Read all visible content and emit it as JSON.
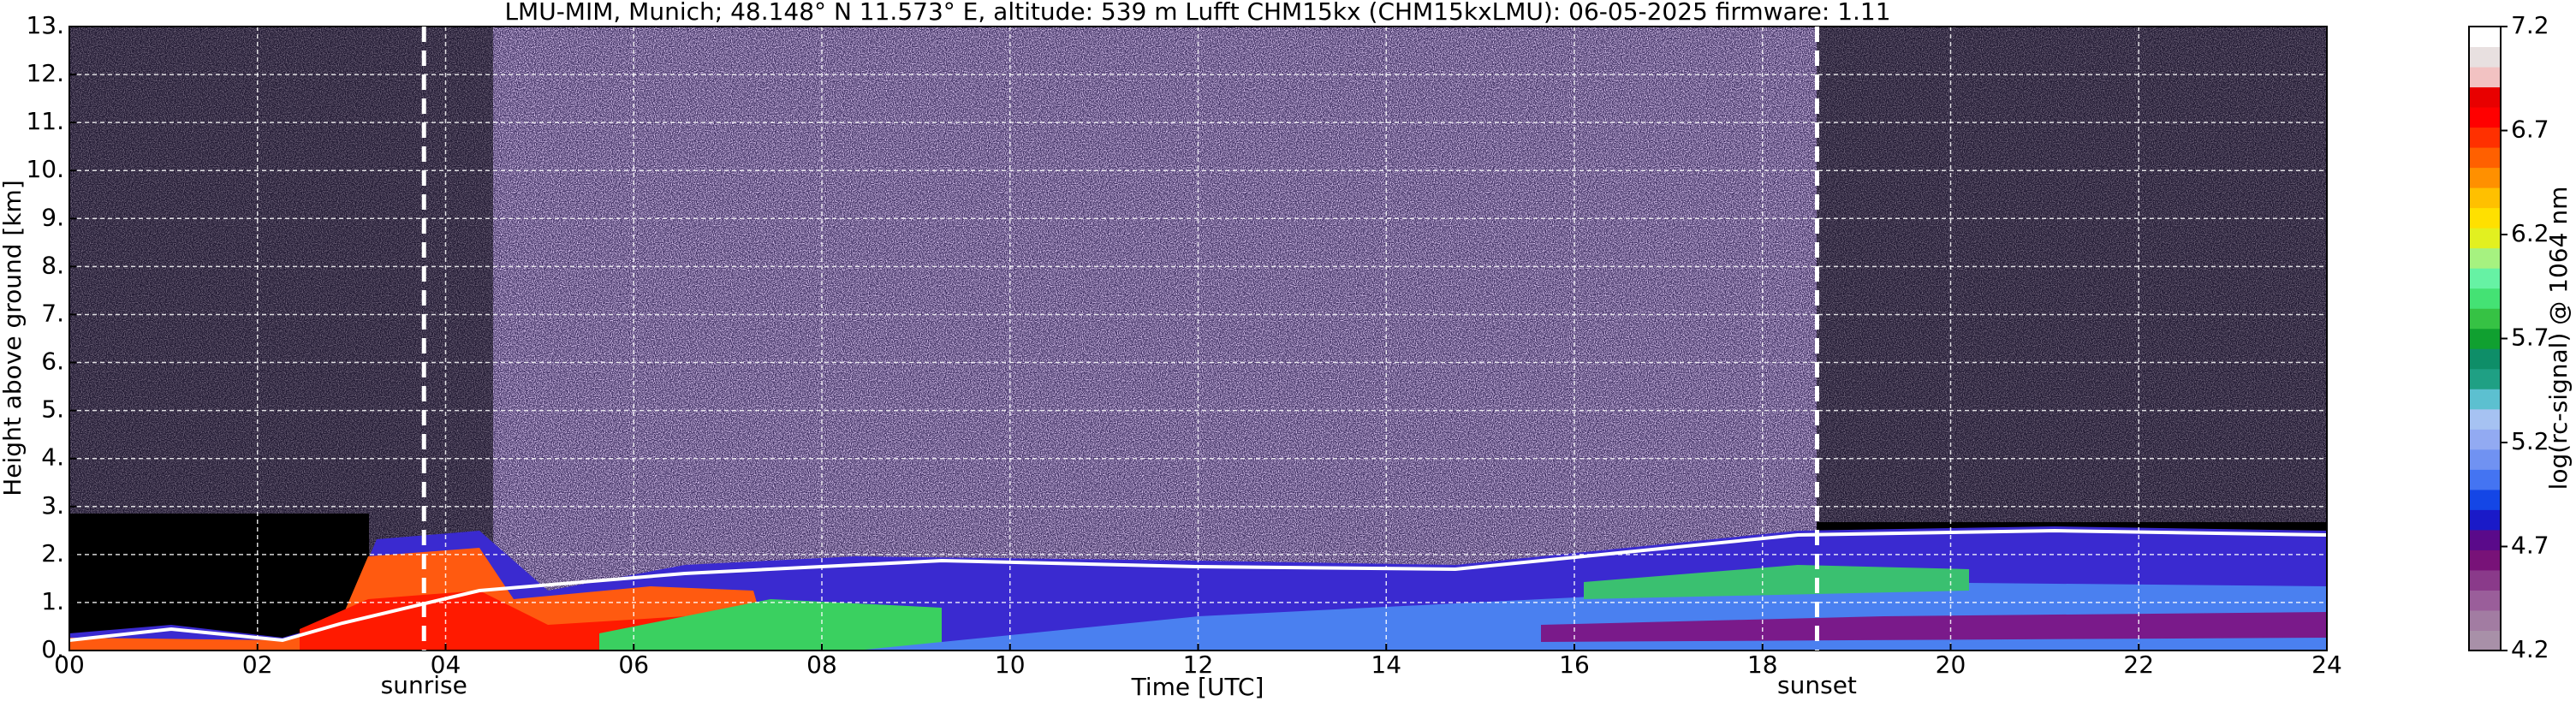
{
  "chart_data": {
    "type": "heatmap",
    "title": "LMU-MIM, Munich; 48.148° N 11.573° E, altitude: 539 m    Lufft CHM15kx (CHM15kxLMU): 06-05-2025    firmware: 1.11",
    "x_label": "Time [UTC]",
    "y_label": "Height above ground [km]",
    "xlim": [
      0,
      24
    ],
    "xticks": [
      {
        "value": 0,
        "label": "00"
      },
      {
        "value": 2,
        "label": "02"
      },
      {
        "value": 4,
        "label": "04"
      },
      {
        "value": 6,
        "label": "06"
      },
      {
        "value": 8,
        "label": "08"
      },
      {
        "value": 10,
        "label": "10"
      },
      {
        "value": 12,
        "label": "12"
      },
      {
        "value": 14,
        "label": "14"
      },
      {
        "value": 16,
        "label": "16"
      },
      {
        "value": 18,
        "label": "18"
      },
      {
        "value": 20,
        "label": "20"
      },
      {
        "value": 22,
        "label": "22"
      },
      {
        "value": 24,
        "label": "24"
      }
    ],
    "ylim": [
      0,
      13
    ],
    "yticks": [
      {
        "value": 0,
        "label": "0."
      },
      {
        "value": 1,
        "label": "1."
      },
      {
        "value": 2,
        "label": "2."
      },
      {
        "value": 3,
        "label": "3."
      },
      {
        "value": 4,
        "label": "4."
      },
      {
        "value": 5,
        "label": "5."
      },
      {
        "value": 6,
        "label": "6."
      },
      {
        "value": 7,
        "label": "7."
      },
      {
        "value": 8,
        "label": "8."
      },
      {
        "value": 9,
        "label": "9."
      },
      {
        "value": 10,
        "label": "10."
      },
      {
        "value": 11,
        "label": "11."
      },
      {
        "value": 12,
        "label": "12."
      },
      {
        "value": 13,
        "label": "13."
      }
    ],
    "grid": true,
    "markers": [
      {
        "label": "sunrise",
        "x": 3.77
      },
      {
        "label": "sunset",
        "x": 18.58
      }
    ],
    "colorbar": {
      "label": "log(rc-signal) @ 1064 nm",
      "lim": [
        4.2,
        7.2
      ],
      "ticks": [
        4.2,
        4.7,
        5.2,
        5.7,
        6.2,
        6.7,
        7.2
      ],
      "colors": [
        "#a890a8",
        "#a27ca2",
        "#9a5e9a",
        "#8a3a8a",
        "#781278",
        "#5a0a8a",
        "#1a1ac8",
        "#1446e6",
        "#4474f2",
        "#7092f2",
        "#92aaf2",
        "#a6c2f2",
        "#5cc0d0",
        "#1fa084",
        "#0e8e68",
        "#10a030",
        "#36c244",
        "#44e274",
        "#66f2a4",
        "#a6f280",
        "#e2f020",
        "#ffe000",
        "#ffc000",
        "#ff9000",
        "#ff6000",
        "#ff3000",
        "#ff0000",
        "#e80000",
        "#f2c2c2",
        "#e8e0e0",
        "#ffffff"
      ]
    }
  }
}
